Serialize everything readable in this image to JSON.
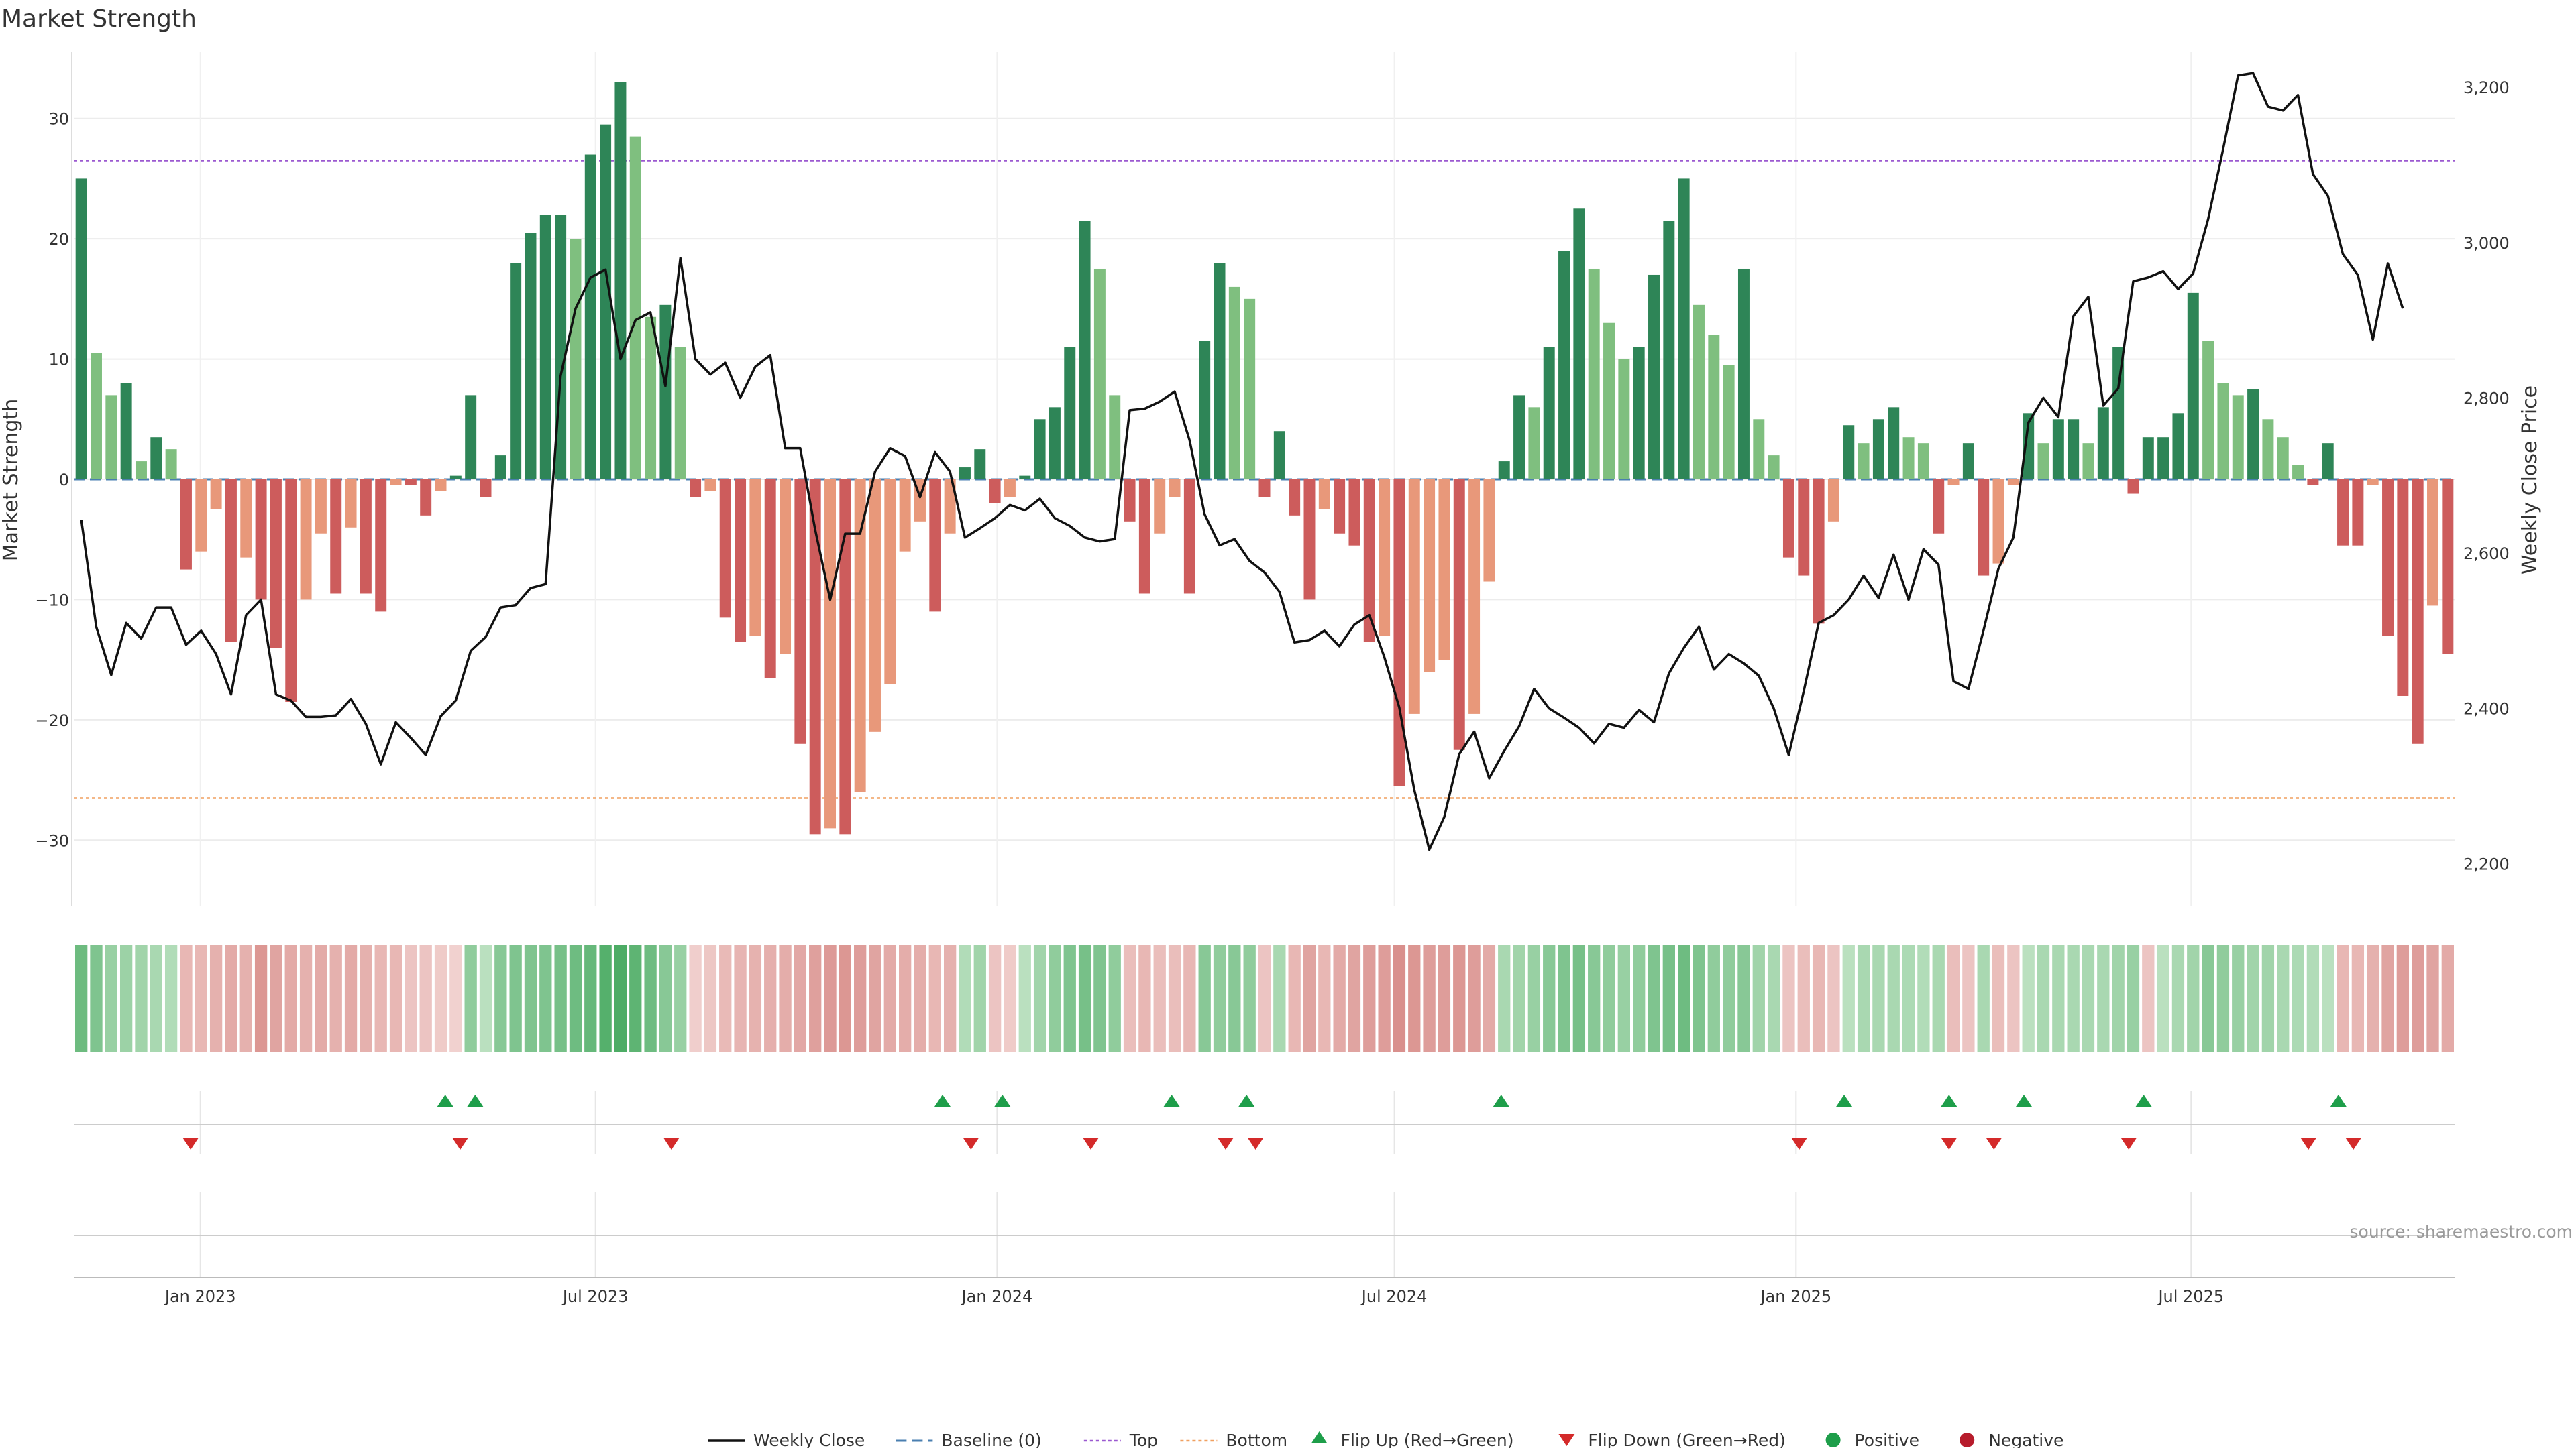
{
  "chart_data": {
    "type": "bar",
    "title": "Market Strength",
    "ylabel": "Market Strength",
    "y2label": "Weekly Close Price",
    "ylim": [
      -35.5,
      35.5
    ],
    "y_ticks": [
      30,
      20,
      10,
      0,
      -10,
      -20,
      -30
    ],
    "y_tick_labels": [
      "30",
      "20",
      "10",
      "0",
      "−10",
      "−20",
      "−30"
    ],
    "y2lim": [
      2145,
      3245
    ],
    "y2_ticks": [
      3200,
      3000,
      2800,
      2600,
      2400,
      2200
    ],
    "y2_tick_labels": [
      "3,200",
      "3,000",
      "2,800",
      "2,600",
      "2,400",
      "2,200"
    ],
    "x_start": "2022-11-04",
    "x_end": "2025-10-30",
    "x_ticks": [
      "2023-01-01",
      "2023-07-01",
      "2024-01-01",
      "2024-07-01",
      "2025-01-01",
      "2025-07-01"
    ],
    "x_tick_labels": [
      "Jan 2023",
      "Jul 2023",
      "Jan 2024",
      "Jul 2024",
      "Jan 2025",
      "Jul 2025"
    ],
    "first_week": "2022-11-04",
    "strength": [
      25,
      10.5,
      7,
      8,
      1.5,
      3.5,
      2.5,
      -7.5,
      -6,
      -2.5,
      -13.5,
      -6.5,
      -10,
      -14,
      -18.5,
      -10,
      -4.5,
      -9.5,
      -4,
      -9.5,
      -11,
      -0.5,
      -0.5,
      -3,
      -1,
      0.3,
      7,
      -1.5,
      2,
      18,
      20.5,
      22,
      22,
      20,
      27,
      29.5,
      33,
      28.5,
      13.5,
      14.5,
      11,
      -1.5,
      -1,
      -11.5,
      -13.5,
      -13,
      -16.5,
      -14.5,
      -22,
      -29.5,
      -29,
      -29.5,
      -26,
      -21,
      -17,
      -6,
      -3.5,
      -11,
      -4.5,
      1,
      2.5,
      -2,
      -1.5,
      0.3,
      5,
      6,
      11,
      21.5,
      17.5,
      7,
      -3.5,
      -9.5,
      -4.5,
      -1.5,
      -9.5,
      11.5,
      18,
      16,
      15,
      -1.5,
      4,
      -3,
      -10,
      -2.5,
      -4.5,
      -5.5,
      -13.5,
      -13,
      -25.5,
      -19.5,
      -16,
      -15,
      -22.5,
      -19.5,
      -8.5,
      1.5,
      7,
      6,
      11,
      19,
      22.5,
      17.5,
      13,
      10,
      11,
      17,
      21.5,
      25,
      14.5,
      12,
      9.5,
      17.5,
      5,
      2,
      -6.5,
      -8,
      -12,
      -3.5,
      4.5,
      3,
      5,
      6,
      3.5,
      3,
      -4.5,
      -0.5,
      3,
      -8,
      -7,
      -0.5,
      5.5,
      3,
      5,
      5,
      3,
      6,
      11,
      -1.2,
      3.5,
      3.5,
      5.5,
      15.5,
      11.5,
      8,
      7,
      7.5,
      5,
      3.5,
      1.2,
      -0.5,
      3,
      -5.5,
      -5.5,
      -0.5,
      -13,
      -18,
      -22,
      -10.5,
      -14.5
    ],
    "price_x": [
      0,
      1,
      2,
      3,
      4,
      5,
      6,
      7,
      8,
      9,
      10,
      11,
      12,
      13,
      14,
      15,
      16,
      17,
      18,
      19,
      20,
      21,
      22,
      23,
      24,
      25,
      26,
      27,
      28,
      29,
      30,
      31,
      32,
      33,
      34,
      35,
      36,
      37,
      38,
      39,
      40,
      41,
      42,
      43,
      44,
      45,
      46,
      47,
      48,
      49,
      50,
      51,
      52,
      53,
      54,
      55,
      56,
      57,
      58,
      59,
      60,
      61,
      62,
      63,
      64,
      65,
      66,
      67,
      68,
      69,
      70,
      71,
      72,
      73,
      74,
      75,
      76,
      77,
      78,
      79,
      80,
      81,
      82,
      83,
      84,
      85,
      86,
      87,
      88,
      89,
      90,
      91,
      92,
      93,
      94,
      95,
      96,
      97,
      98,
      99,
      100,
      101,
      102,
      103,
      104,
      105,
      106,
      107,
      108,
      109,
      110,
      111,
      112,
      113,
      114,
      115,
      116,
      117,
      118,
      119,
      120,
      121,
      122,
      123,
      124,
      125,
      126,
      127,
      128,
      129,
      130,
      131,
      132,
      133,
      134,
      135,
      136,
      137,
      138,
      139,
      140,
      141,
      142,
      143,
      144,
      145,
      146,
      147,
      148,
      149,
      150,
      151,
      152,
      153,
      154,
      155,
      156,
      157
    ],
    "weekly_close": [
      2643,
      2505,
      2443,
      2510,
      2490,
      2530,
      2530,
      2482,
      2500,
      2470,
      2418,
      2520,
      2540,
      2418,
      2410,
      2389,
      2389,
      2391,
      2412,
      2380,
      2328,
      2382,
      2362,
      2340,
      2390,
      2410,
      2474,
      2492,
      2530,
      2533,
      2555,
      2560,
      2828,
      2915,
      2955,
      2965,
      2850,
      2900,
      2910,
      2815,
      2980,
      2850,
      2830,
      2845,
      2800,
      2840,
      2855,
      2735,
      2735,
      2630,
      2540,
      2625,
      2625,
      2705,
      2735,
      2725,
      2672,
      2730,
      2705,
      2620,
      2632,
      2645,
      2662,
      2655,
      2670,
      2645,
      2635,
      2620,
      2615,
      2618,
      2784,
      2786,
      2795,
      2808,
      2745,
      2650,
      2610,
      2618,
      2590,
      2575,
      2550,
      2485,
      2488,
      2500,
      2480,
      2508,
      2520,
      2466,
      2401,
      2295,
      2218,
      2260,
      2341,
      2370,
      2310,
      2345,
      2377,
      2425,
      2400,
      2388,
      2375,
      2355,
      2380,
      2375,
      2398,
      2382,
      2445,
      2478,
      2505,
      2450,
      2470,
      2458,
      2442,
      2400,
      2340,
      2422,
      2510,
      2520,
      2540,
      2571,
      2542,
      2598,
      2540,
      2605,
      2585,
      2435,
      2425,
      2500,
      2580,
      2620,
      2768,
      2800,
      2775,
      2905,
      2930,
      2790,
      2812,
      2950,
      2955,
      2963,
      2940,
      2960,
      3030,
      3120,
      3215,
      3218,
      3175,
      3170,
      3190,
      3088,
      3060,
      2985,
      2958,
      2875,
      2973,
      2915
    ],
    "top_line": 26.5,
    "bottom_line": -26.5,
    "heat_levels": [
      0.66,
      0.55,
      0.4,
      0.38,
      0.35,
      0.3,
      0.25,
      -0.3,
      -0.3,
      -0.35,
      -0.4,
      -0.35,
      -0.55,
      -0.45,
      -0.4,
      -0.35,
      -0.4,
      -0.35,
      -0.4,
      -0.35,
      -0.3,
      -0.3,
      -0.2,
      -0.2,
      -0.15,
      -0.1,
      0.45,
      0.2,
      0.5,
      0.55,
      0.55,
      0.55,
      0.6,
      0.65,
      0.7,
      0.8,
      0.85,
      0.75,
      0.65,
      0.5,
      0.4,
      -0.12,
      -0.18,
      -0.28,
      -0.32,
      -0.34,
      -0.36,
      -0.38,
      -0.42,
      -0.48,
      -0.52,
      -0.55,
      -0.5,
      -0.45,
      -0.4,
      -0.38,
      -0.38,
      -0.3,
      -0.35,
      0.25,
      0.35,
      -0.2,
      -0.15,
      0.2,
      0.35,
      0.45,
      0.55,
      0.6,
      0.55,
      0.45,
      -0.25,
      -0.3,
      -0.25,
      -0.25,
      -0.3,
      0.5,
      0.45,
      0.5,
      0.45,
      -0.2,
      0.3,
      -0.3,
      -0.45,
      -0.3,
      -0.4,
      -0.45,
      -0.5,
      -0.5,
      -0.6,
      -0.55,
      -0.5,
      -0.5,
      -0.55,
      -0.5,
      -0.4,
      0.3,
      0.35,
      0.4,
      0.5,
      0.55,
      0.6,
      0.5,
      0.45,
      0.4,
      0.45,
      0.55,
      0.6,
      0.65,
      0.55,
      0.45,
      0.45,
      0.5,
      0.35,
      0.3,
      -0.2,
      -0.25,
      -0.3,
      -0.2,
      0.2,
      0.3,
      0.3,
      0.3,
      0.28,
      0.25,
      0.3,
      -0.25,
      -0.2,
      0.3,
      -0.25,
      -0.2,
      0.2,
      0.3,
      0.3,
      0.3,
      0.3,
      0.3,
      0.35,
      0.4,
      -0.2,
      0.2,
      0.3,
      0.35,
      0.5,
      0.45,
      0.4,
      0.35,
      0.35,
      0.3,
      0.28,
      0.25,
      0.2,
      -0.3,
      -0.3,
      -0.35,
      -0.45,
      -0.5,
      -0.5,
      -0.45,
      -0.4
    ],
    "flip_up_x": [
      24.3,
      26.3,
      57.5,
      61.5,
      72.8,
      77.8,
      94.8,
      117.7,
      124.7,
      129.7,
      137.7,
      150.7
    ],
    "flip_down_x": [
      7.3,
      25.3,
      39.4,
      59.4,
      67.4,
      76.4,
      78.4,
      114.7,
      124.7,
      127.7,
      136.7,
      148.7,
      151.7
    ],
    "legend": [
      "Weekly Close",
      "Baseline (0)",
      "Top",
      "Bottom",
      "Flip Up (Red→Green)",
      "Flip Down (Green→Red)",
      "Positive",
      "Negative"
    ],
    "source": "source: sharemaestro.com",
    "colors": {
      "pos_strong": "#2e8557",
      "pos_light": "#7fbf7f",
      "neg_strong": "#cd5c5c",
      "neg_light": "#e8987a",
      "price": "#111111",
      "top_line": "#9b59d0",
      "bottom_line": "#f0a060",
      "baseline": "#4a7fb0",
      "flip_up": "#1e9e4a",
      "flip_down": "#d42a2a",
      "negative_dot": "#b71c2c"
    }
  }
}
